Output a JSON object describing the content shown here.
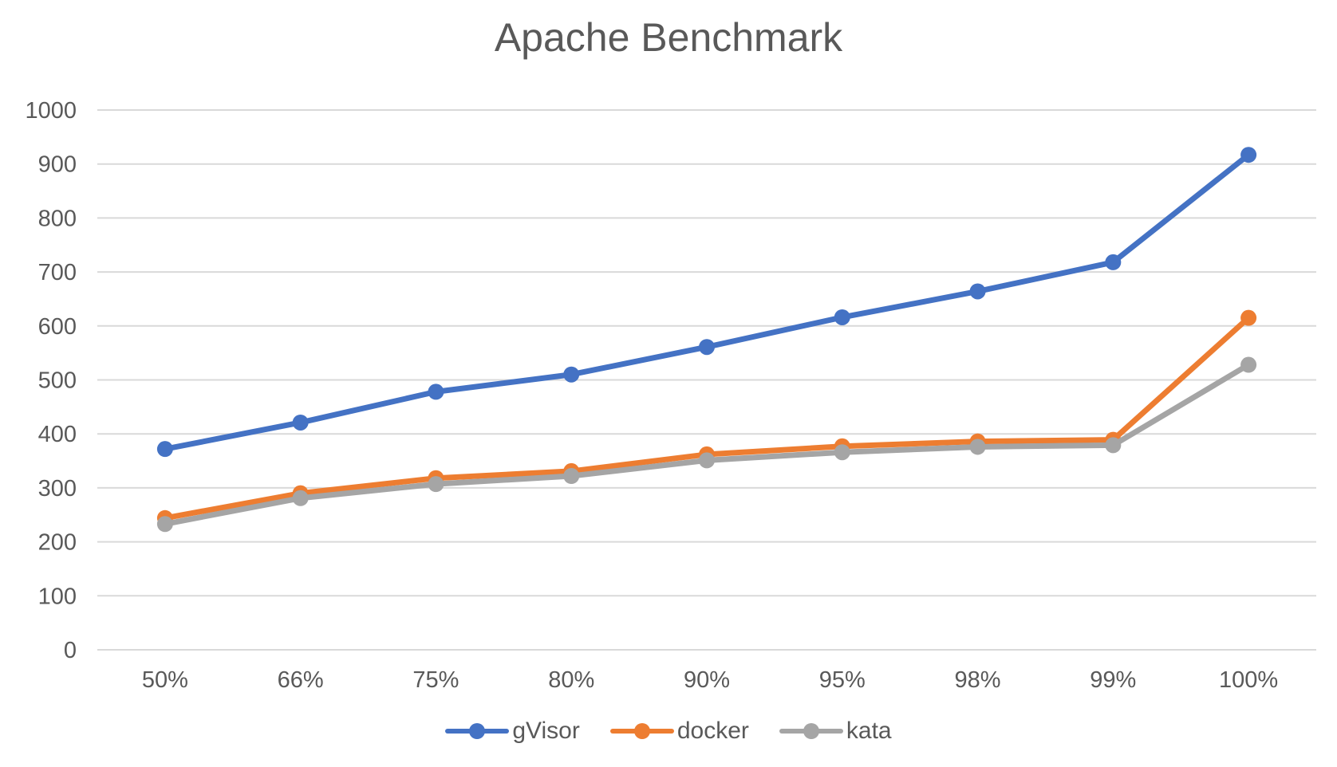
{
  "chart_data": {
    "type": "line",
    "title": "Apache Benchmark",
    "xlabel": "",
    "ylabel": "",
    "categories": [
      "50%",
      "66%",
      "75%",
      "80%",
      "90%",
      "95%",
      "98%",
      "99%",
      "100%"
    ],
    "ylim": [
      0,
      1000
    ],
    "yticks": [
      0,
      100,
      200,
      300,
      400,
      500,
      600,
      700,
      800,
      900,
      1000
    ],
    "grid": true,
    "legend_position": "bottom",
    "series": [
      {
        "name": "gVisor",
        "color": "#4472c4",
        "values": [
          372,
          421,
          478,
          510,
          561,
          616,
          664,
          718,
          917
        ]
      },
      {
        "name": "docker",
        "color": "#ed7d31",
        "values": [
          244,
          290,
          318,
          331,
          362,
          377,
          386,
          389,
          615
        ]
      },
      {
        "name": "kata",
        "color": "#a5a5a5",
        "values": [
          233,
          281,
          307,
          322,
          351,
          366,
          376,
          379,
          528
        ]
      }
    ]
  }
}
